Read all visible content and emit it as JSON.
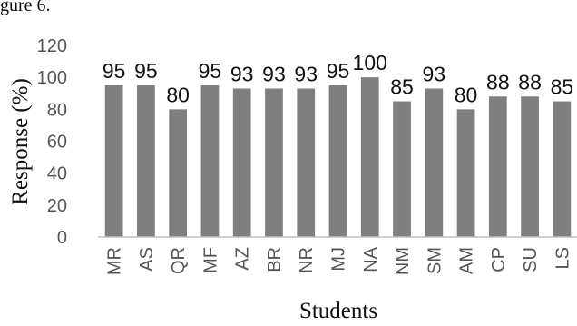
{
  "caption_fragment": "gure 6.",
  "chart_data": {
    "type": "bar",
    "xlabel": "Students",
    "ylabel": "Response (%)",
    "ylim": [
      0,
      120
    ],
    "yticks": [
      0,
      20,
      40,
      60,
      80,
      100,
      120
    ],
    "grid": false,
    "bar_color": "#7f7f7f",
    "categories": [
      "MR",
      "AS",
      "QR",
      "MF",
      "AZ",
      "BR",
      "NR",
      "MJ",
      "NA",
      "NM",
      "SM",
      "AM",
      "CP",
      "SU",
      "LS"
    ],
    "values": [
      95,
      95,
      80,
      95,
      93,
      93,
      93,
      95,
      100,
      85,
      93,
      80,
      88,
      88,
      85
    ],
    "data_labels": [
      "95",
      "95",
      "80",
      "95",
      "93",
      "93",
      "93",
      "95",
      "100",
      "85",
      "93",
      "80",
      "88",
      "88",
      "85"
    ]
  }
}
